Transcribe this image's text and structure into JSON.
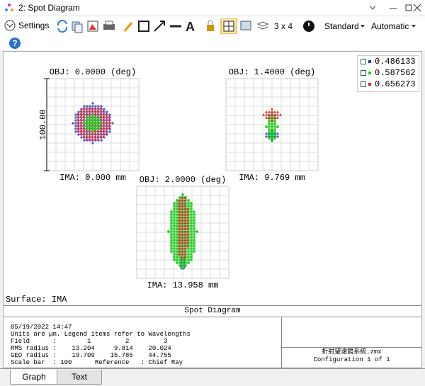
{
  "window": {
    "title": "2: Spot Diagram"
  },
  "toolbar": {
    "settings": "Settings",
    "layout": "3 x 4",
    "standard": "Standard",
    "automatic": "Automatic"
  },
  "legend": [
    "0.486133",
    "0.587562",
    "0.656273"
  ],
  "plots": [
    {
      "obj": "OBJ: 0.0000 (deg)",
      "ima": "IMA: 0.000 mm"
    },
    {
      "obj": "OBJ: 1.4000 (deg)",
      "ima": "IMA: 9.769 mm"
    },
    {
      "obj": "OBJ: 2.0000 (deg)",
      "ima": "IMA: 13.958 mm"
    }
  ],
  "scale_label": "100.00",
  "surface": "Surface: IMA",
  "info": {
    "title": "Spot Diagram",
    "lines": [
      "05/19/2022 14:47",
      "Units are µm. Legend items refer to Wavelengths",
      "Field      :        1         2         3",
      "RMS radius :    13.204     9.814    20.024",
      "GEO radius :    19.709    15.785    44.755",
      "Scale bar  : 100      Reference   : Chief Ray"
    ],
    "file": "折射望遠鏡系統.zmx",
    "config": "Configuration 1 of 1"
  },
  "tabs": [
    "Graph",
    "Text"
  ]
}
